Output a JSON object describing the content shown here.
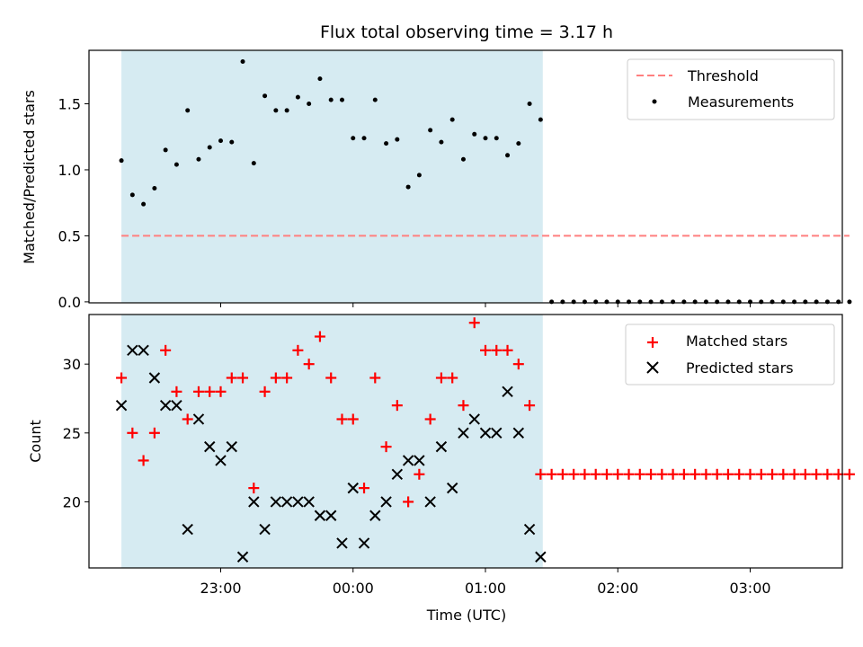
{
  "chart_data": [
    {
      "type": "scatter",
      "title": "Flux total observing time = 3.17 h",
      "ylabel": "Matched/Predicted stars",
      "xlabel": "",
      "ylim": [
        0,
        1.9
      ],
      "yticks": [
        0.0,
        0.5,
        1.0,
        1.5
      ],
      "ytick_labels": [
        "0.0",
        "0.5",
        "1.0",
        "1.5"
      ],
      "legend_position": "top-right",
      "shaded_interval": [
        "22:15",
        "01:26"
      ],
      "threshold": {
        "name": "Threshold",
        "value": 0.5,
        "x": [
          "22:15",
          "03:45"
        ],
        "color": "#ff7f7f"
      },
      "series": [
        {
          "name": "Measurements",
          "color": "#000000",
          "x": [
            "22:15",
            "22:20",
            "22:25",
            "22:30",
            "22:35",
            "22:40",
            "22:45",
            "22:50",
            "22:55",
            "23:00",
            "23:05",
            "23:10",
            "23:15",
            "23:20",
            "23:25",
            "23:30",
            "23:35",
            "23:40",
            "23:45",
            "23:50",
            "23:55",
            "00:00",
            "00:05",
            "00:10",
            "00:15",
            "00:20",
            "00:25",
            "00:30",
            "00:35",
            "00:40",
            "00:45",
            "00:50",
            "00:55",
            "01:00",
            "01:05",
            "01:10",
            "01:15",
            "01:20",
            "01:25",
            "01:30",
            "01:35",
            "01:40",
            "01:45",
            "01:50",
            "01:55",
            "02:00",
            "02:05",
            "02:10",
            "02:15",
            "02:20",
            "02:25",
            "02:30",
            "02:35",
            "02:40",
            "02:45",
            "02:50",
            "02:55",
            "03:00",
            "03:05",
            "03:10",
            "03:15",
            "03:20",
            "03:25",
            "03:30",
            "03:35",
            "03:40",
            "03:45"
          ],
          "values": [
            1.07,
            0.81,
            0.74,
            0.86,
            1.15,
            1.04,
            1.45,
            1.08,
            1.17,
            1.22,
            1.21,
            1.82,
            1.05,
            1.56,
            1.45,
            1.45,
            1.55,
            1.5,
            1.69,
            1.53,
            1.53,
            1.24,
            1.24,
            1.53,
            1.2,
            1.23,
            0.87,
            0.96,
            1.3,
            1.21,
            1.38,
            1.08,
            1.27,
            1.24,
            1.24,
            1.11,
            1.2,
            1.5,
            1.38,
            0,
            0,
            0,
            0,
            0,
            0,
            0,
            0,
            0,
            0,
            0,
            0,
            0,
            0,
            0,
            0,
            0,
            0,
            0,
            0,
            0,
            0,
            0,
            0,
            0,
            0,
            0,
            0
          ]
        }
      ]
    },
    {
      "type": "scatter",
      "title": "",
      "ylabel": "Count",
      "xlabel": "Time (UTC)",
      "ylim": [
        15.2,
        33.6
      ],
      "yticks": [
        20,
        25,
        30
      ],
      "ytick_labels": [
        "20",
        "25",
        "30"
      ],
      "xticks": [
        "23:00",
        "00:00",
        "01:00",
        "02:00",
        "03:00"
      ],
      "xlim": [
        "22:00",
        "03:50"
      ],
      "legend_position": "top-right",
      "shaded_interval": [
        "22:15",
        "01:26"
      ],
      "series": [
        {
          "name": "Matched stars",
          "color": "#ff0000",
          "marker": "plus",
          "x": [
            "22:15",
            "22:20",
            "22:25",
            "22:30",
            "22:35",
            "22:40",
            "22:45",
            "22:50",
            "22:55",
            "23:00",
            "23:05",
            "23:10",
            "23:15",
            "23:20",
            "23:25",
            "23:30",
            "23:35",
            "23:40",
            "23:45",
            "23:50",
            "23:55",
            "00:00",
            "00:05",
            "00:10",
            "00:15",
            "00:20",
            "00:25",
            "00:30",
            "00:35",
            "00:40",
            "00:45",
            "00:50",
            "00:55",
            "01:00",
            "01:05",
            "01:10",
            "01:15",
            "01:20",
            "01:25",
            "01:30",
            "01:35",
            "01:40",
            "01:45",
            "01:50",
            "01:55",
            "02:00",
            "02:05",
            "02:10",
            "02:15",
            "02:20",
            "02:25",
            "02:30",
            "02:35",
            "02:40",
            "02:45",
            "02:50",
            "02:55",
            "03:00",
            "03:05",
            "03:10",
            "03:15",
            "03:20",
            "03:25",
            "03:30",
            "03:35",
            "03:40",
            "03:45"
          ],
          "values": [
            29,
            25,
            23,
            25,
            31,
            28,
            26,
            28,
            28,
            28,
            29,
            29,
            21,
            28,
            29,
            29,
            31,
            30,
            32,
            29,
            26,
            26,
            21,
            29,
            24,
            27,
            20,
            22,
            26,
            29,
            29,
            27,
            33,
            31,
            31,
            31,
            30,
            27,
            22,
            22,
            22,
            22,
            22,
            22,
            22,
            22,
            22,
            22,
            22,
            22,
            22,
            22,
            22,
            22,
            22,
            22,
            22,
            22,
            22,
            22,
            22,
            22,
            22,
            22,
            22,
            22,
            22
          ]
        },
        {
          "name": "Predicted stars",
          "color": "#000000",
          "marker": "x",
          "x": [
            "22:15",
            "22:20",
            "22:25",
            "22:30",
            "22:35",
            "22:40",
            "22:45",
            "22:50",
            "22:55",
            "23:00",
            "23:05",
            "23:10",
            "23:15",
            "23:20",
            "23:25",
            "23:30",
            "23:35",
            "23:40",
            "23:45",
            "23:50",
            "23:55",
            "00:00",
            "00:05",
            "00:10",
            "00:15",
            "00:20",
            "00:25",
            "00:30",
            "00:35",
            "00:40",
            "00:45",
            "00:50",
            "00:55",
            "01:00",
            "01:05",
            "01:10",
            "01:15",
            "01:20",
            "01:25"
          ],
          "values": [
            27,
            31,
            31,
            29,
            27,
            27,
            18,
            26,
            24,
            23,
            24,
            16,
            20,
            18,
            20,
            20,
            20,
            20,
            19,
            19,
            17,
            21,
            17,
            19,
            20,
            22,
            23,
            23,
            20,
            24,
            21,
            25,
            26,
            25,
            25,
            28,
            25,
            18,
            16
          ]
        }
      ]
    }
  ]
}
